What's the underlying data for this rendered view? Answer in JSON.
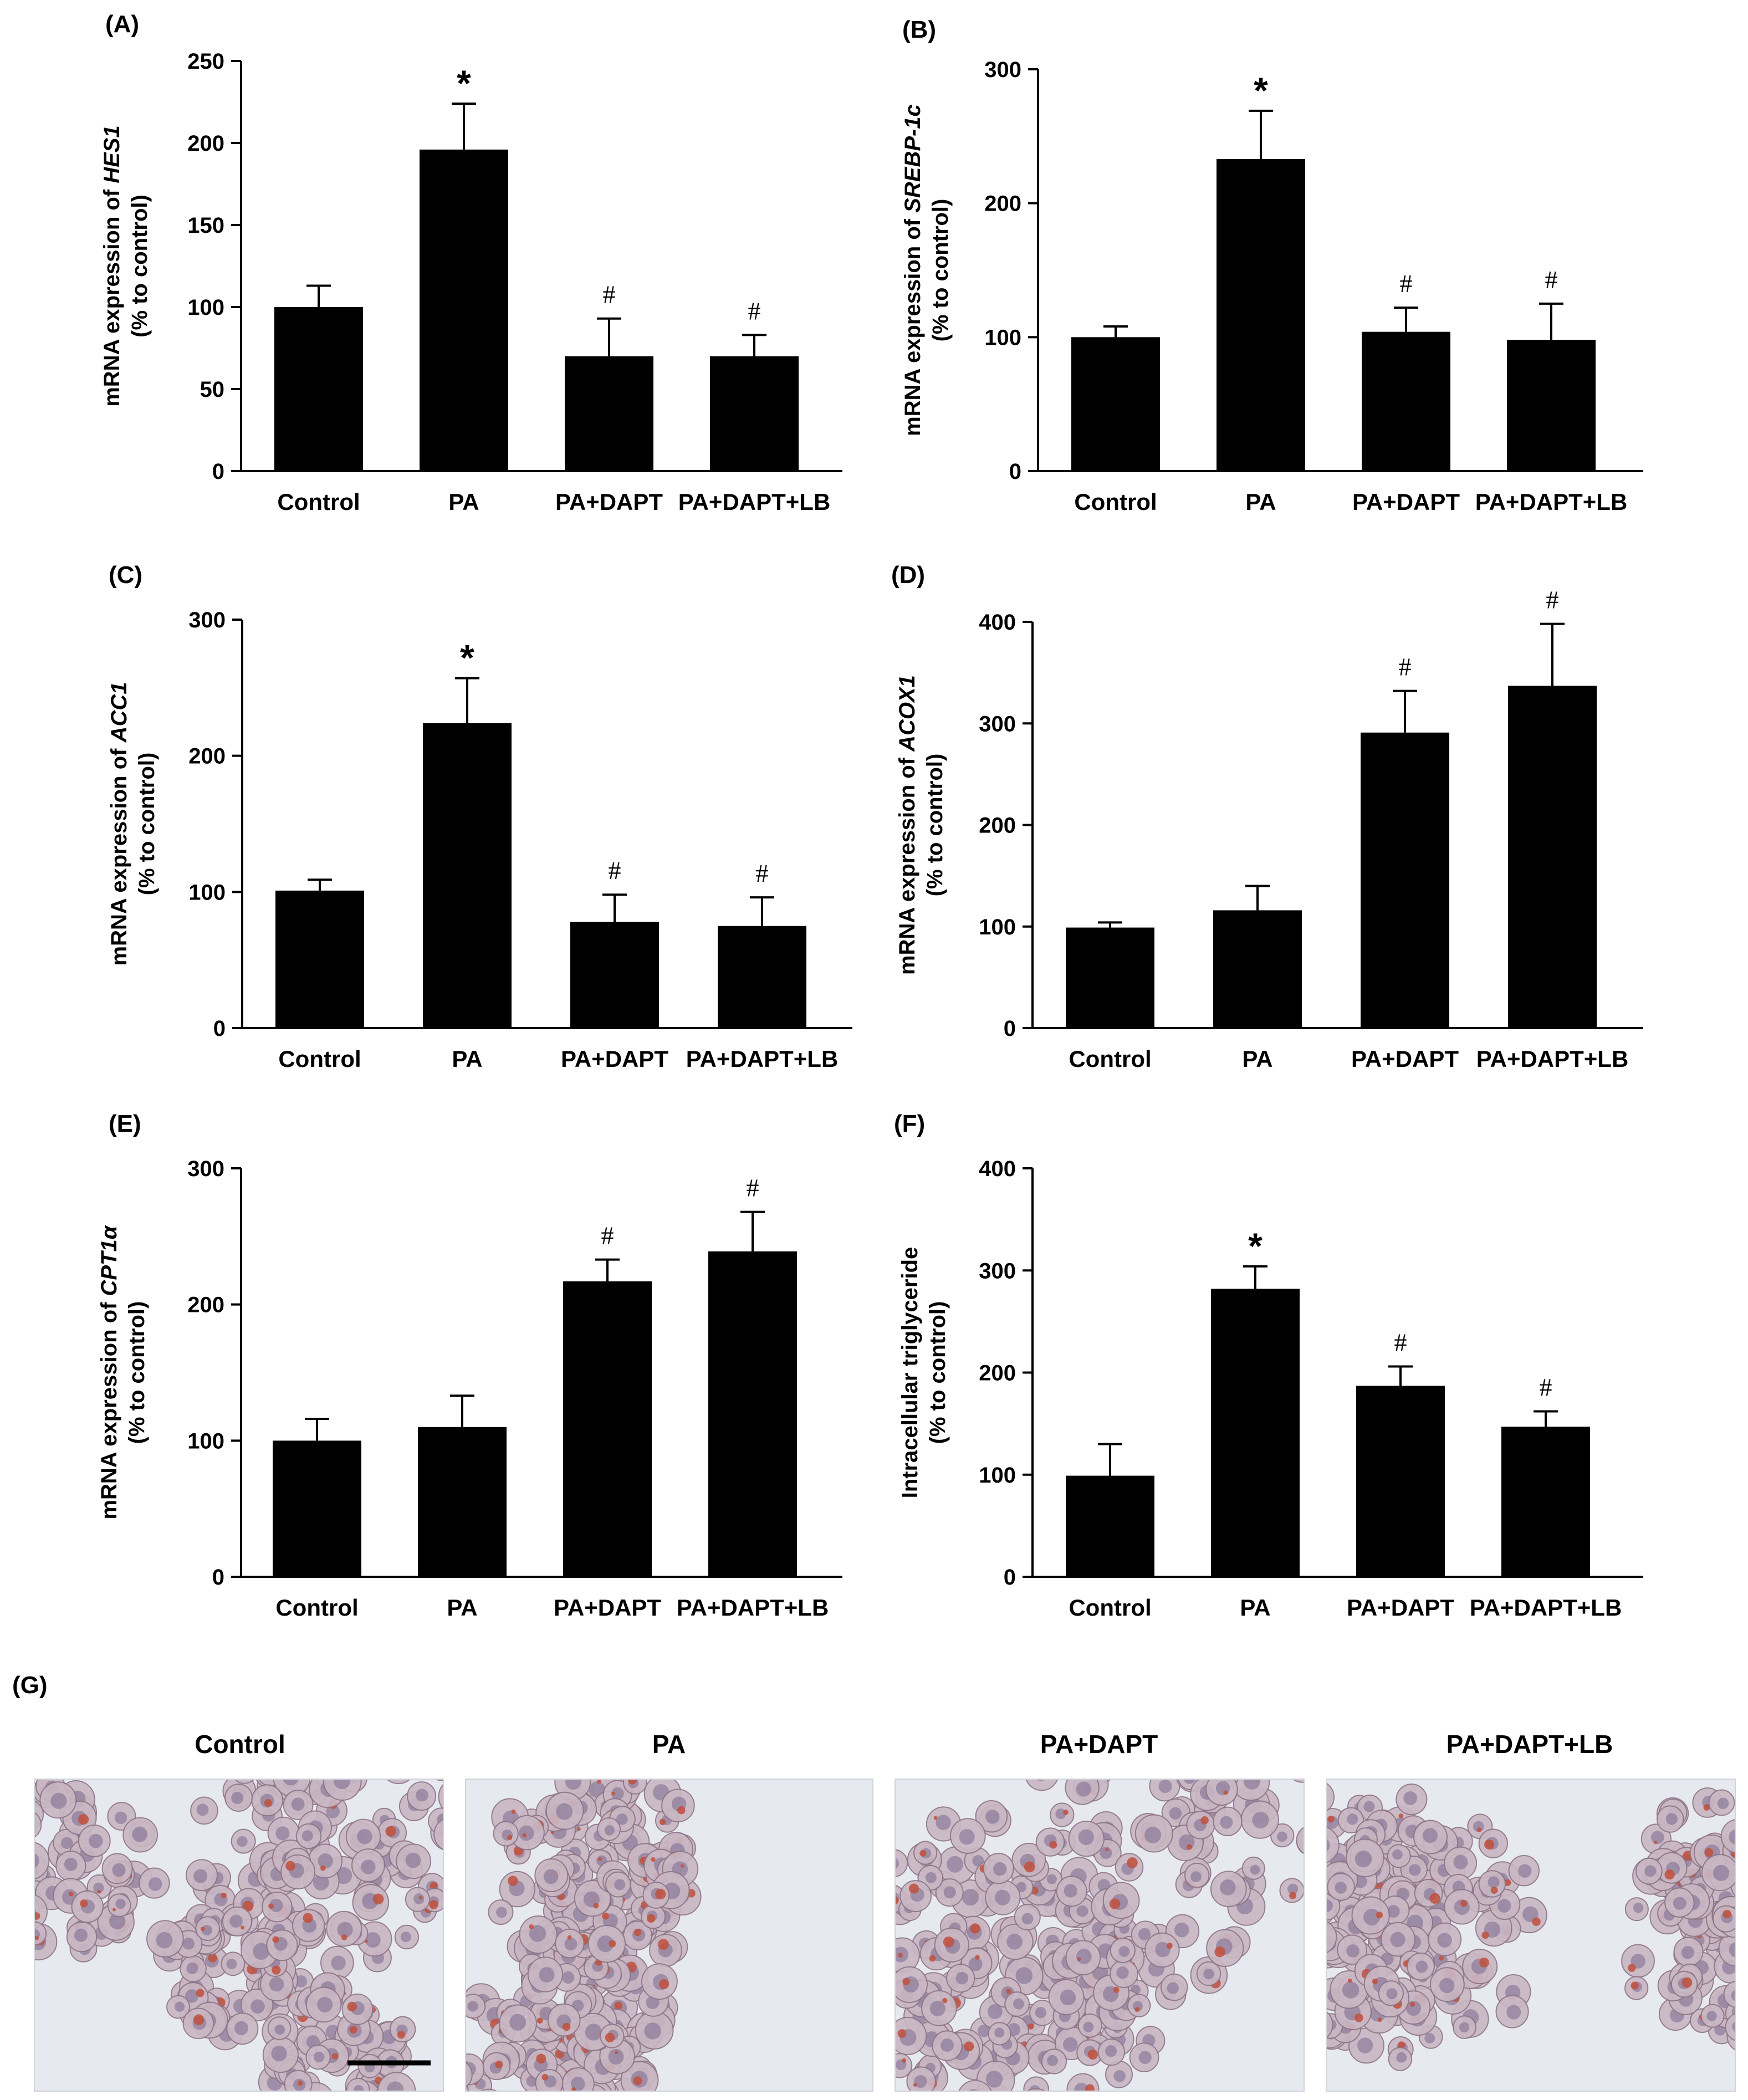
{
  "figure": {
    "micro_panel_label": "(G)",
    "micro_titles": [
      "Control",
      "PA",
      "PA+DAPT",
      "PA+DAPT+LB"
    ]
  },
  "colors": {
    "bar": "#000000",
    "axis": "#000000",
    "cell_stain": "#c0503c",
    "cell_nucleus": "#7a6a8e"
  },
  "chart_data": [
    {
      "type": "bar",
      "panel": "(A)",
      "categories": [
        "Control",
        "PA",
        "PA+DAPT",
        "PA+DAPT+LB"
      ],
      "values": [
        100,
        196,
        70,
        70
      ],
      "errors": [
        13,
        28,
        23,
        13
      ],
      "annotations": [
        "",
        "*",
        "#",
        "#"
      ],
      "ylabel_prefix": "mRNA expression of ",
      "ylabel_gene": "HES1",
      "ylabel_line2": "(% to control)",
      "ylim": [
        0,
        250
      ],
      "yticks": [
        0,
        50,
        100,
        150,
        200,
        250
      ],
      "grid": false
    },
    {
      "type": "bar",
      "panel": "(B)",
      "categories": [
        "Control",
        "PA",
        "PA+DAPT",
        "PA+DAPT+LB"
      ],
      "values": [
        100,
        233,
        104,
        98
      ],
      "errors": [
        8,
        36,
        18,
        27
      ],
      "annotations": [
        "",
        "*",
        "#",
        "#"
      ],
      "ylabel_prefix": "mRNA expression of ",
      "ylabel_gene": "SREBP-1c",
      "ylabel_line2": "(% to control)",
      "ylim": [
        0,
        300
      ],
      "yticks": [
        0,
        100,
        200,
        300
      ],
      "grid": false
    },
    {
      "type": "bar",
      "panel": "(C)",
      "categories": [
        "Control",
        "PA",
        "PA+DAPT",
        "PA+DAPT+LB"
      ],
      "values": [
        101,
        224,
        78,
        75
      ],
      "errors": [
        8,
        33,
        20,
        21
      ],
      "annotations": [
        "",
        "*",
        "#",
        "#"
      ],
      "ylabel_prefix": "mRNA expression of ",
      "ylabel_gene": "ACC1",
      "ylabel_line2": "(% to control)",
      "ylim": [
        0,
        300
      ],
      "yticks": [
        0,
        100,
        200,
        300
      ],
      "grid": false
    },
    {
      "type": "bar",
      "panel": "(D)",
      "categories": [
        "Control",
        "PA",
        "PA+DAPT",
        "PA+DAPT+LB"
      ],
      "values": [
        99,
        116,
        291,
        337
      ],
      "errors": [
        5,
        24,
        41,
        61
      ],
      "annotations": [
        "",
        "",
        "#",
        "#"
      ],
      "ylabel_prefix": "mRNA expression of ",
      "ylabel_gene": "ACOX1",
      "ylabel_line2": "(% to control)",
      "ylim": [
        0,
        400
      ],
      "yticks": [
        0,
        100,
        200,
        300,
        400
      ],
      "grid": false
    },
    {
      "type": "bar",
      "panel": "(E)",
      "categories": [
        "Control",
        "PA",
        "PA+DAPT",
        "PA+DAPT+LB"
      ],
      "values": [
        100,
        110,
        217,
        239
      ],
      "errors": [
        16,
        23,
        16,
        29
      ],
      "annotations": [
        "",
        "",
        "#",
        "#"
      ],
      "ylabel_prefix": "mRNA expression of ",
      "ylabel_gene": "CPT1α",
      "ylabel_line2": "(% to control)",
      "ylim": [
        0,
        300
      ],
      "yticks": [
        0,
        100,
        200,
        300
      ],
      "grid": false
    },
    {
      "type": "bar",
      "panel": "(F)",
      "categories": [
        "Control",
        "PA",
        "PA+DAPT",
        "PA+DAPT+LB"
      ],
      "values": [
        99,
        282,
        187,
        147
      ],
      "errors": [
        31,
        22,
        19,
        15
      ],
      "annotations": [
        "",
        "*",
        "#",
        "#"
      ],
      "ylabel_prefix": "Intracellular triglyceride",
      "ylabel_gene": "",
      "ylabel_line2": "(% to control)",
      "ylim": [
        0,
        400
      ],
      "yticks": [
        0,
        100,
        200,
        300,
        400
      ],
      "grid": false
    }
  ]
}
